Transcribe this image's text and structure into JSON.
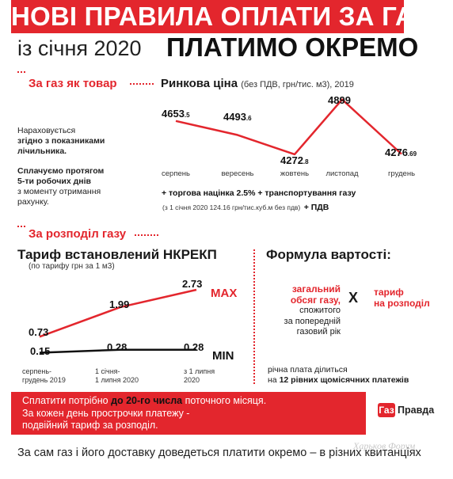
{
  "header": {
    "title": "НОВІ ПРАВИЛА ОПЛАТИ ЗА ГАЗ",
    "since": "із січня 2020",
    "pay_separately": "ПЛАТИМО ОКРЕМО"
  },
  "gas_section": {
    "title": "За газ як товар",
    "note1_lines": [
      "Нараховується",
      "згідно з показниками",
      "лічильника."
    ],
    "note2_lines": [
      "Сплачуємо протягом",
      "5-ти робочих днів",
      "з моменту отримання",
      "рахунку."
    ]
  },
  "market_chart": {
    "title": "Ринкова ціна",
    "title_note": "(без ПДВ, грн/тис. м3), 2019",
    "labels": [
      {
        "main": "4653",
        "dec": ".5"
      },
      {
        "main": "4493",
        "dec": ".6"
      },
      {
        "main": "4272",
        "dec": ".8"
      },
      {
        "main": "4899",
        "dec": ""
      },
      {
        "main": "4276",
        "dec": ".69"
      }
    ],
    "plus_line1": "+ торгова націнка 2.5% + транспортування газу",
    "plus_line2a": "(з 1 січня 2020 124.16 грн/тис.куб.м без пдв)",
    "plus_line2b": "+ ПДВ"
  },
  "dist_section": {
    "title": "За розподіл газу",
    "tarif_title": "Тариф встановлений НКРЕКП",
    "tarif_sub": "(по тарифу грн за 1 м3)",
    "formula_title": "Формула вартості:",
    "formula_left_red": [
      "загальний",
      "обсяг газу,"
    ],
    "formula_left_rest": [
      "спожитого",
      "за попередній",
      "газовий рік"
    ],
    "formula_x": "X",
    "formula_right_red": [
      "тариф",
      "на розподіл"
    ],
    "annual_line1": "річна плата ділиться",
    "annual_line2a": "на",
    "annual_line2b": "12 рівних щомісячних платежів"
  },
  "chart_data": [
    {
      "type": "line",
      "title": "Ринкова ціна",
      "subtitle": "(без ПДВ, грн/тис. м3), 2019",
      "categories": [
        "серпень",
        "вересень",
        "жовтень",
        "листопад",
        "грудень"
      ],
      "values": [
        4653.5,
        4493.6,
        4272.8,
        4899,
        4276.69
      ],
      "grid": false,
      "legend": "none",
      "color": "#e3262d"
    },
    {
      "type": "line",
      "title": "Тариф встановлений НКРЕКП",
      "subtitle": "(по тарифу грн за 1 м3)",
      "categories": [
        "серпень-\nгрудень 2019",
        "1 січня-\n1 липня 2020",
        "з 1 липня\n2020"
      ],
      "series": [
        {
          "name": "MAX",
          "values": [
            0.73,
            1.99,
            2.73
          ],
          "color": "#e3262d"
        },
        {
          "name": "MIN",
          "values": [
            0.15,
            0.28,
            0.28
          ],
          "color": "#111111"
        }
      ],
      "grid": false,
      "legend": "right"
    }
  ],
  "tarif_chart": {
    "max_labels": [
      "0.73",
      "1.99",
      "2.73"
    ],
    "min_labels": [
      "0.15",
      "0.28",
      "0.28"
    ],
    "series_max_name": "MAX",
    "series_min_name": "MIN",
    "x_labels": [
      [
        "серпень-",
        "грудень 2019"
      ],
      [
        "1 січня-",
        "1 липня 2020"
      ],
      [
        "з 1 липня",
        "2020"
      ]
    ]
  },
  "warning": {
    "line1a": "Сплатити потрібно",
    "line1b": "до 20-го числа",
    "line1c": "поточного місяця.",
    "line2": "За кожен день прострочки платежу -",
    "line3": "подвійний тариф за розподіл."
  },
  "logo": {
    "mark": "Газ",
    "name": "Правда"
  },
  "watermark": "Харьков Форум",
  "footer": "За сам газ і його доставку доведеться платити окремо – в різних квитанціях",
  "colors": {
    "accent": "#e3262d",
    "text": "#1a1a1a"
  }
}
